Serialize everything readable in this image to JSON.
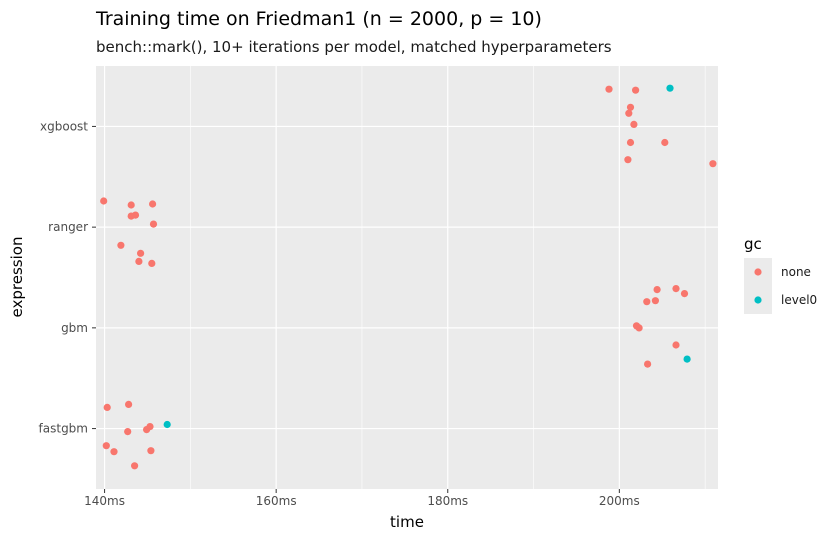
{
  "chart_data": {
    "type": "scatter",
    "title": "Training time on Friedman1 (n = 2000, p = 10)",
    "subtitle": "bench::mark(), 10+ iterations per model, matched hyperparameters",
    "xlabel": "time",
    "ylabel": "expression",
    "x_unit": "ms",
    "xlim": [
      139,
      211.5
    ],
    "x_ticks": [
      {
        "value": 140,
        "label": "140ms"
      },
      {
        "value": 160,
        "label": "160ms"
      },
      {
        "value": 180,
        "label": "180ms"
      },
      {
        "value": 200,
        "label": "200ms"
      }
    ],
    "x_minor_ticks": [
      150,
      170,
      190,
      210
    ],
    "categories": [
      "fastgbm",
      "gbm",
      "ranger",
      "xgboost"
    ],
    "grid": true,
    "legend": {
      "title": "gc",
      "position": "right",
      "entries": [
        {
          "label": "none",
          "color": "#F8766D"
        },
        {
          "label": "level0",
          "color": "#00BFC4"
        }
      ]
    },
    "series": [
      {
        "name": "none",
        "color": "#F8766D",
        "points": [
          {
            "expression": "xgboost",
            "time": 198.8,
            "offset": 0.37
          },
          {
            "expression": "xgboost",
            "time": 201.9,
            "offset": 0.36
          },
          {
            "expression": "xgboost",
            "time": 201.3,
            "offset": 0.19
          },
          {
            "expression": "xgboost",
            "time": 201.1,
            "offset": 0.13
          },
          {
            "expression": "xgboost",
            "time": 201.7,
            "offset": 0.02
          },
          {
            "expression": "xgboost",
            "time": 201.3,
            "offset": -0.16
          },
          {
            "expression": "xgboost",
            "time": 205.3,
            "offset": -0.16
          },
          {
            "expression": "xgboost",
            "time": 201.0,
            "offset": -0.33
          },
          {
            "expression": "xgboost",
            "time": 210.9,
            "offset": -0.37
          },
          {
            "expression": "ranger",
            "time": 139.9,
            "offset": 0.26
          },
          {
            "expression": "ranger",
            "time": 143.1,
            "offset": 0.22
          },
          {
            "expression": "ranger",
            "time": 145.6,
            "offset": 0.23
          },
          {
            "expression": "ranger",
            "time": 143.1,
            "offset": 0.11
          },
          {
            "expression": "ranger",
            "time": 143.6,
            "offset": 0.12
          },
          {
            "expression": "ranger",
            "time": 145.7,
            "offset": 0.03
          },
          {
            "expression": "ranger",
            "time": 141.9,
            "offset": -0.18
          },
          {
            "expression": "ranger",
            "time": 144.2,
            "offset": -0.26
          },
          {
            "expression": "ranger",
            "time": 144.0,
            "offset": -0.34
          },
          {
            "expression": "ranger",
            "time": 145.5,
            "offset": -0.36
          },
          {
            "expression": "gbm",
            "time": 206.6,
            "offset": 0.39
          },
          {
            "expression": "gbm",
            "time": 204.4,
            "offset": 0.38
          },
          {
            "expression": "gbm",
            "time": 207.6,
            "offset": 0.34
          },
          {
            "expression": "gbm",
            "time": 204.2,
            "offset": 0.27
          },
          {
            "expression": "gbm",
            "time": 203.2,
            "offset": 0.26
          },
          {
            "expression": "gbm",
            "time": 202.0,
            "offset": 0.02
          },
          {
            "expression": "gbm",
            "time": 202.3,
            "offset": 0.0
          },
          {
            "expression": "gbm",
            "time": 206.6,
            "offset": -0.17
          },
          {
            "expression": "gbm",
            "time": 203.3,
            "offset": -0.36
          },
          {
            "expression": "fastgbm",
            "time": 140.3,
            "offset": 0.21
          },
          {
            "expression": "fastgbm",
            "time": 142.8,
            "offset": 0.24
          },
          {
            "expression": "fastgbm",
            "time": 142.7,
            "offset": -0.03
          },
          {
            "expression": "fastgbm",
            "time": 144.9,
            "offset": -0.01
          },
          {
            "expression": "fastgbm",
            "time": 145.3,
            "offset": 0.02
          },
          {
            "expression": "fastgbm",
            "time": 140.2,
            "offset": -0.17
          },
          {
            "expression": "fastgbm",
            "time": 141.1,
            "offset": -0.23
          },
          {
            "expression": "fastgbm",
            "time": 145.4,
            "offset": -0.22
          },
          {
            "expression": "fastgbm",
            "time": 143.5,
            "offset": -0.37
          }
        ]
      },
      {
        "name": "level0",
        "color": "#00BFC4",
        "points": [
          {
            "expression": "xgboost",
            "time": 205.9,
            "offset": 0.38
          },
          {
            "expression": "gbm",
            "time": 207.9,
            "offset": -0.31
          },
          {
            "expression": "fastgbm",
            "time": 147.3,
            "offset": 0.04
          }
        ]
      }
    ]
  }
}
